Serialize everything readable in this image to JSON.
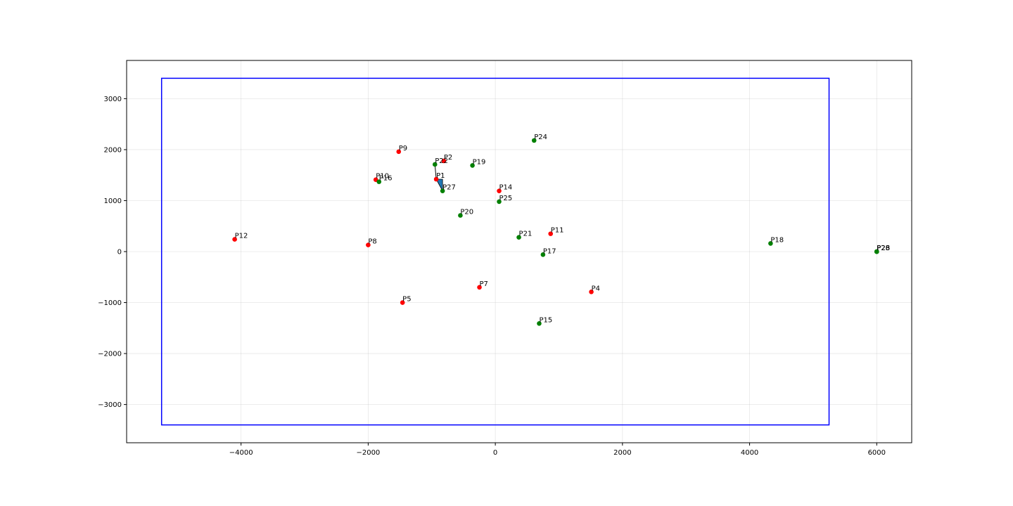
{
  "chart_data": {
    "type": "scatter",
    "title": "",
    "xlabel": "",
    "ylabel": "",
    "xlim": [
      -5800,
      6550
    ],
    "ylim": [
      -3750,
      3750
    ],
    "grid": true,
    "xticks": [
      -4000,
      -2000,
      0,
      2000,
      4000,
      6000
    ],
    "yticks": [
      -3000,
      -2000,
      -1000,
      0,
      1000,
      2000,
      3000
    ],
    "xtick_labels": [
      "−4000",
      "−2000",
      "0",
      "2000",
      "4000",
      "6000"
    ],
    "ytick_labels": [
      "−3000",
      "−2000",
      "−1000",
      "0",
      "1000",
      "2000",
      "3000"
    ],
    "boundary": {
      "x0": -5250,
      "x1": 5250,
      "y0": -3400,
      "y1": 3400,
      "color": "#0000ff"
    },
    "colors": {
      "red": "#ff0000",
      "green": "#008000",
      "arrow": "#1f77b4"
    },
    "points": [
      {
        "label": "P1",
        "x": -930,
        "y": 1420,
        "color": "red"
      },
      {
        "label": "P2",
        "x": -810,
        "y": 1780,
        "color": "red"
      },
      {
        "label": "P4",
        "x": 1510,
        "y": -790,
        "color": "red"
      },
      {
        "label": "P5",
        "x": -1460,
        "y": -1000,
        "color": "red"
      },
      {
        "label": "P7",
        "x": -250,
        "y": -700,
        "color": "red"
      },
      {
        "label": "P8",
        "x": -2000,
        "y": 130,
        "color": "red"
      },
      {
        "label": "P9",
        "x": -1520,
        "y": 1960,
        "color": "red"
      },
      {
        "label": "P10",
        "x": -1880,
        "y": 1410,
        "color": "red"
      },
      {
        "label": "P11",
        "x": 870,
        "y": 350,
        "color": "red"
      },
      {
        "label": "P12",
        "x": -4100,
        "y": 240,
        "color": "red"
      },
      {
        "label": "P14",
        "x": 60,
        "y": 1190,
        "color": "red"
      },
      {
        "label": "P15",
        "x": 690,
        "y": -1410,
        "color": "green"
      },
      {
        "label": "P16",
        "x": -1830,
        "y": 1370,
        "color": "green"
      },
      {
        "label": "P17",
        "x": 750,
        "y": -60,
        "color": "green"
      },
      {
        "label": "P18",
        "x": 4330,
        "y": 160,
        "color": "green"
      },
      {
        "label": "P19",
        "x": -360,
        "y": 1690,
        "color": "green"
      },
      {
        "label": "P20",
        "x": -550,
        "y": 710,
        "color": "green"
      },
      {
        "label": "P21",
        "x": 370,
        "y": 280,
        "color": "green"
      },
      {
        "label": "P22",
        "x": -950,
        "y": 1710,
        "color": "green"
      },
      {
        "label": "P24",
        "x": 610,
        "y": 2180,
        "color": "green"
      },
      {
        "label": "P25",
        "x": 60,
        "y": 980,
        "color": "green"
      },
      {
        "label": "P27",
        "x": -830,
        "y": 1190,
        "color": "green"
      },
      {
        "label": "P23",
        "x": 6000,
        "y": 0,
        "color": "green"
      },
      {
        "label": "P26",
        "x": 6000,
        "y": 0,
        "color": "green"
      },
      {
        "label": "P28",
        "x": 6000,
        "y": 0,
        "color": "green"
      }
    ],
    "arrow": {
      "line_start": [
        -950,
        1710
      ],
      "polygon": [
        [
          -930,
          1420
        ],
        [
          -830,
          1420
        ],
        [
          -830,
          1190
        ]
      ]
    }
  }
}
